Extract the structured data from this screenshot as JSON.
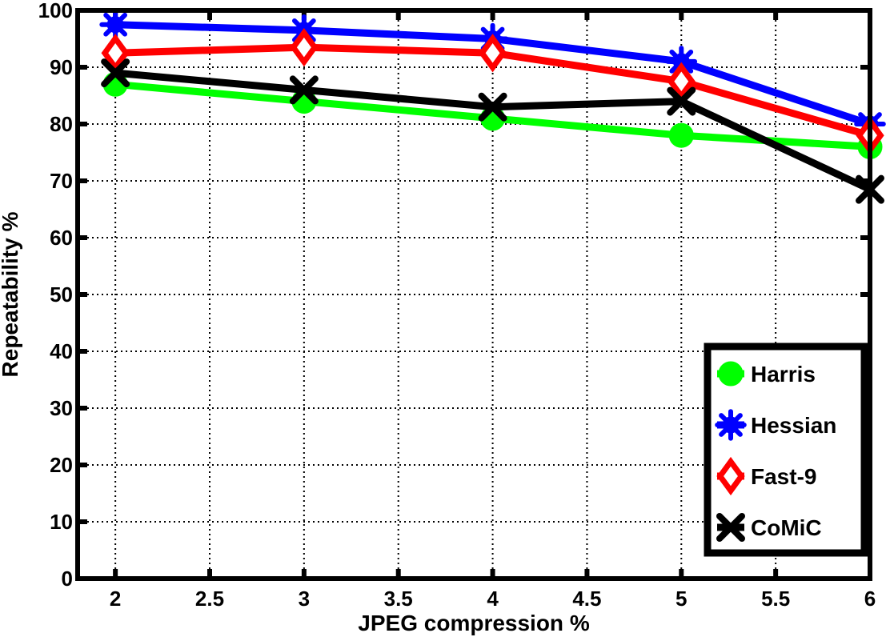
{
  "chart_data": {
    "type": "line",
    "title": "",
    "xlabel": "JPEG compression %",
    "ylabel": "Repeatability %",
    "xlim": [
      1.8,
      6
    ],
    "ylim": [
      0,
      100
    ],
    "xticks": [
      2,
      2.5,
      3,
      3.5,
      4,
      4.5,
      5,
      5.5,
      6
    ],
    "yticks": [
      0,
      10,
      20,
      30,
      40,
      50,
      60,
      70,
      80,
      90,
      100
    ],
    "grid": true,
    "legend_position": "bottom-right",
    "x": [
      2,
      3,
      4,
      5,
      6
    ],
    "series": [
      {
        "name": "Harris",
        "color": "#00ff00",
        "marker": "circle",
        "values": [
          87,
          84,
          81,
          78,
          76
        ]
      },
      {
        "name": "Hessian",
        "color": "#0000ff",
        "marker": "star",
        "values": [
          97.5,
          96.5,
          95,
          91,
          80
        ]
      },
      {
        "name": "Fast-9",
        "color": "#ff0000",
        "marker": "diamond",
        "values": [
          92.5,
          93.5,
          92.5,
          87.5,
          78
        ]
      },
      {
        "name": "CoMiC",
        "color": "#000000",
        "marker": "x",
        "values": [
          89,
          86,
          83,
          84,
          68.5
        ]
      }
    ]
  }
}
